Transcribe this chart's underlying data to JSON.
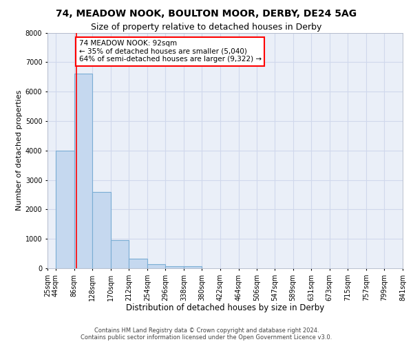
{
  "title1": "74, MEADOW NOOK, BOULTON MOOR, DERBY, DE24 5AG",
  "title2": "Size of property relative to detached houses in Derby",
  "xlabel": "Distribution of detached houses by size in Derby",
  "ylabel": "Number of detached properties",
  "bin_edges": [
    25,
    44,
    86,
    128,
    170,
    212,
    254,
    296,
    338,
    380,
    422,
    464,
    506,
    547,
    589,
    631,
    673,
    715,
    757,
    799,
    841
  ],
  "bar_heights": [
    0,
    4000,
    6600,
    2600,
    950,
    320,
    140,
    80,
    60,
    0,
    0,
    0,
    0,
    0,
    0,
    0,
    0,
    0,
    0,
    0
  ],
  "bar_color": "#c5d8ef",
  "bar_edge_color": "#7aadd4",
  "bar_edge_width": 0.8,
  "red_line_x": 92,
  "annotation_text": "74 MEADOW NOOK: 92sqm\n← 35% of detached houses are smaller (5,040)\n64% of semi-detached houses are larger (9,322) →",
  "annotation_box_color": "white",
  "annotation_box_edge_color": "red",
  "ylim": [
    0,
    8000
  ],
  "xlim": [
    25,
    841
  ],
  "yticks": [
    0,
    1000,
    2000,
    3000,
    4000,
    5000,
    6000,
    7000,
    8000
  ],
  "xtick_labels": [
    "25sqm",
    "44sqm",
    "86sqm",
    "128sqm",
    "170sqm",
    "212sqm",
    "254sqm",
    "296sqm",
    "338sqm",
    "380sqm",
    "422sqm",
    "464sqm",
    "506sqm",
    "547sqm",
    "589sqm",
    "631sqm",
    "673sqm",
    "715sqm",
    "757sqm",
    "799sqm",
    "841sqm"
  ],
  "xtick_positions": [
    25,
    44,
    86,
    128,
    170,
    212,
    254,
    296,
    338,
    380,
    422,
    464,
    506,
    547,
    589,
    631,
    673,
    715,
    757,
    799,
    841
  ],
  "grid_color": "#d0d8ec",
  "background_color": "#eaeff8",
  "footer_text": "Contains HM Land Registry data © Crown copyright and database right 2024.\nContains public sector information licensed under the Open Government Licence v3.0.",
  "title1_fontsize": 10,
  "title2_fontsize": 9,
  "xlabel_fontsize": 8.5,
  "ylabel_fontsize": 8,
  "tick_fontsize": 7,
  "annotation_fontsize": 7.5,
  "footer_fontsize": 6
}
